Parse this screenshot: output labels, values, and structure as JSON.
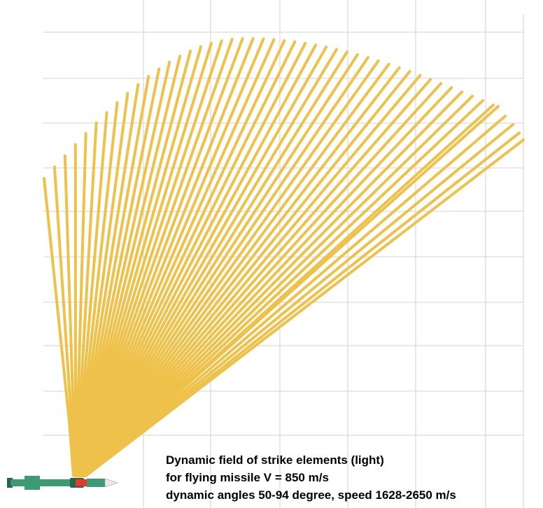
{
  "caption": {
    "line1": "Dynamic field of strike elements (light)",
    "line2": "for flying missile V = 850 m/s",
    "line3": "dynamic angles 50-94 degree, speed 1628-2650 m/s"
  },
  "colors": {
    "ray": "#EEC24A",
    "ray_fill": "#EEC044",
    "grid": "#DCDCDC",
    "missile_body": "#3E9A72",
    "missile_dark": "#23664A",
    "missile_band": "#E23B2B",
    "missile_nose": "#E8E8E8"
  },
  "icons": {
    "missile": "missile-icon"
  }
}
